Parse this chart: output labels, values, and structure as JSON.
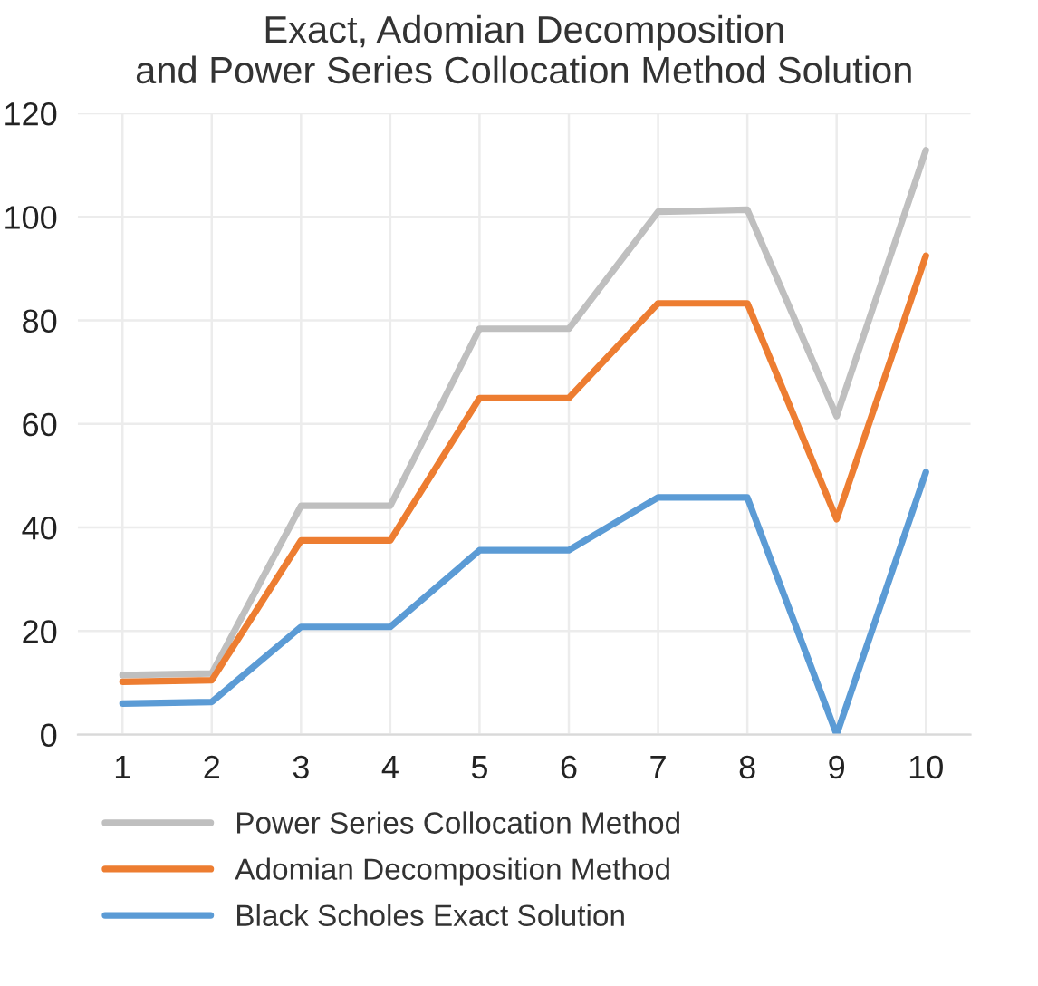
{
  "chart_data": {
    "type": "line",
    "title": "Exact, Adomian Decomposition\nand Power Series Collocation Method Solution",
    "categories": [
      "1",
      "2",
      "3",
      "4",
      "5",
      "6",
      "7",
      "8",
      "9",
      "10"
    ],
    "series": [
      {
        "name": "Power Series Collocation Method",
        "color": "#bfbfbf",
        "values": [
          11.5,
          11.8,
          44.2,
          44.2,
          78.4,
          78.4,
          101,
          101.4,
          61.5,
          112.9
        ]
      },
      {
        "name": "Adomian Decomposition Method",
        "color": "#ed7d31",
        "values": [
          10.2,
          10.5,
          37.5,
          37.5,
          65,
          65,
          83.3,
          83.3,
          41.6,
          92.5
        ]
      },
      {
        "name": "Black Scholes Exact Solution",
        "color": "#5b9bd5",
        "values": [
          6,
          6.3,
          20.8,
          20.8,
          35.6,
          35.6,
          45.8,
          45.8,
          0,
          50.7
        ]
      }
    ],
    "ylim": [
      0,
      120
    ],
    "yticks": [
      0,
      20,
      40,
      60,
      80,
      100,
      120
    ],
    "grid": true,
    "legend": "bottom",
    "marker": "none",
    "line_style": "solid"
  }
}
